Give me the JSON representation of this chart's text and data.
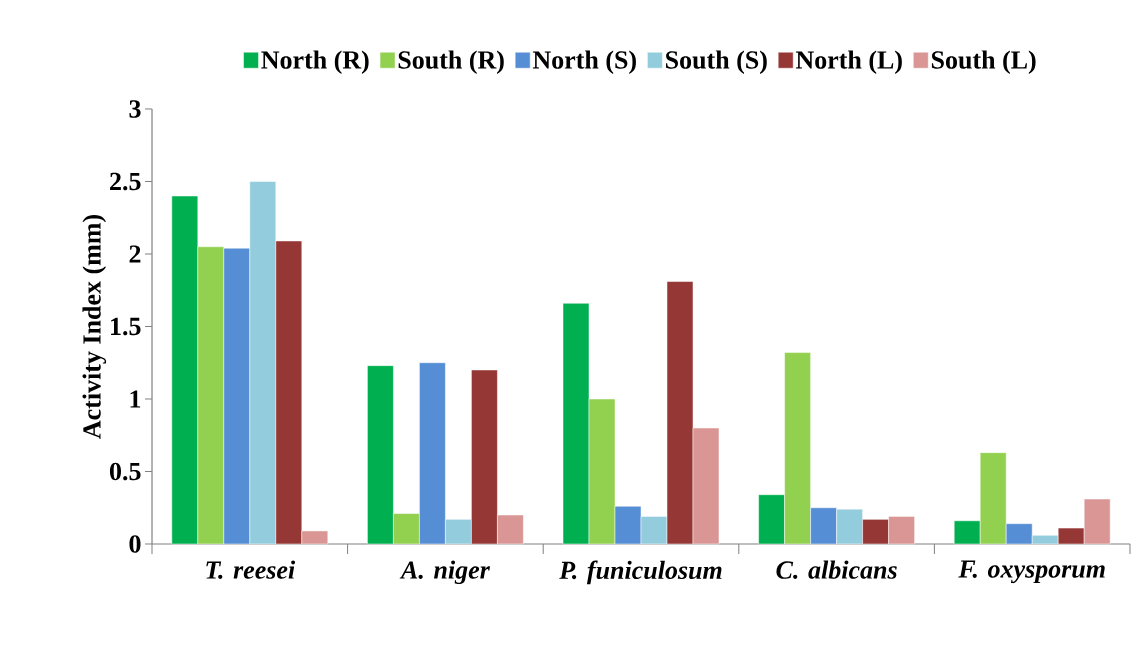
{
  "chart_data": {
    "type": "bar",
    "ylabel": "Activity Index (mm)",
    "categories": [
      "T. reesei",
      "A. niger",
      "P. funiculosum",
      "C. albicans",
      "F. oxysporum"
    ],
    "series": [
      {
        "name": "North (R)",
        "color": "#00b050",
        "values": [
          2.4,
          1.23,
          1.66,
          0.34,
          0.16
        ]
      },
      {
        "name": "South (R)",
        "color": "#92d050",
        "values": [
          2.05,
          0.21,
          1.0,
          1.32,
          0.63
        ]
      },
      {
        "name": "North (S)",
        "color": "#558ed5",
        "values": [
          2.04,
          1.25,
          0.26,
          0.25,
          0.14
        ]
      },
      {
        "name": "South (S)",
        "color": "#93cddd",
        "values": [
          2.5,
          0.17,
          0.19,
          0.24,
          0.06
        ]
      },
      {
        "name": "North (L)",
        "color": "#953735",
        "values": [
          2.09,
          1.2,
          1.81,
          0.17,
          0.11
        ]
      },
      {
        "name": "South (L)",
        "color": "#d99694",
        "values": [
          0.09,
          0.2,
          0.8,
          0.19,
          0.31
        ]
      }
    ],
    "ylim": [
      0,
      3
    ],
    "yticks": [
      0,
      0.5,
      1,
      1.5,
      2,
      2.5,
      3
    ],
    "grid": false,
    "legend": "top"
  }
}
